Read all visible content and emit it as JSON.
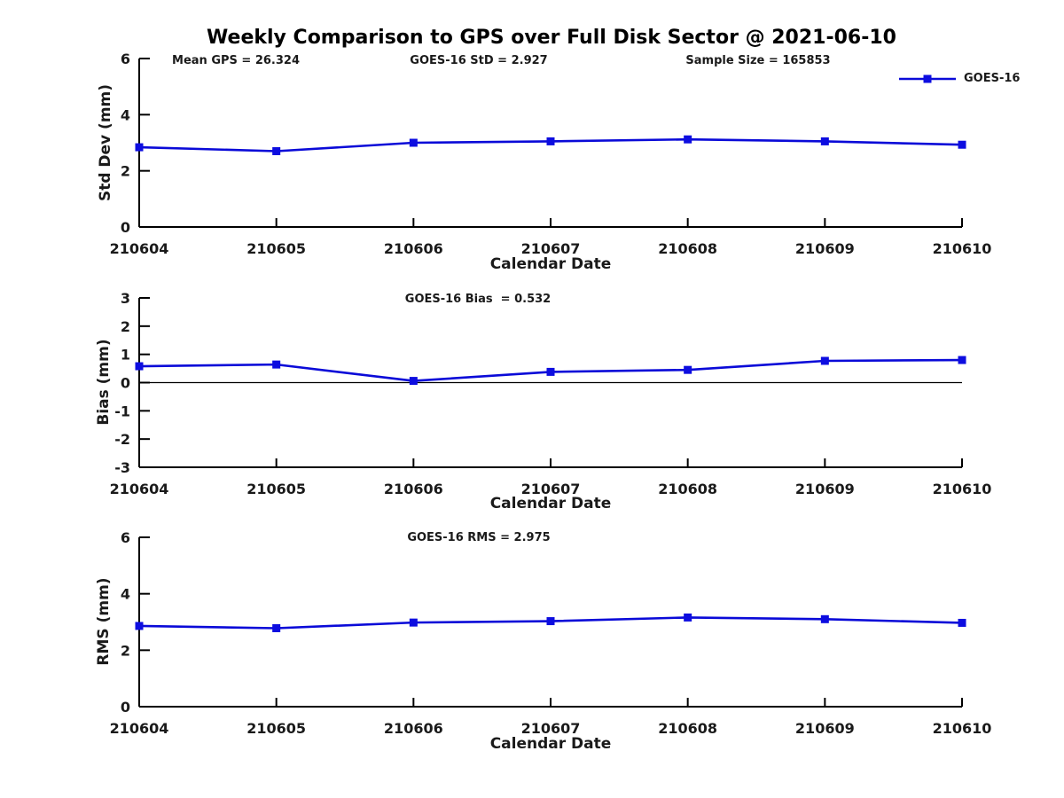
{
  "title": "Weekly Comparison to GPS over Full Disk Sector @ 2021-06-10",
  "header_stats": {
    "mean_gps": "Mean GPS = 26.324",
    "goes16_std": "GOES-16 StD = 2.927",
    "sample_size": "Sample Size = 165853"
  },
  "legend": {
    "series_label": "GOES-16"
  },
  "colors": {
    "line": "#0a0ad8",
    "marker": "#0d0de0",
    "axis": "#000000",
    "text": "#1a1a1a",
    "zero_line": "#000000"
  },
  "chart_data": [
    {
      "type": "line",
      "name": "std-dev",
      "ylabel": "Std Dev (mm)",
      "xlabel": "Calendar Date",
      "annotations": [
        "Mean GPS = 26.324",
        "GOES-16 StD = 2.927",
        "Sample Size = 165853"
      ],
      "categories": [
        "210604",
        "210605",
        "210606",
        "210607",
        "210608",
        "210609",
        "210610"
      ],
      "series": [
        {
          "name": "GOES-16",
          "values": [
            2.84,
            2.7,
            3.0,
            3.05,
            3.12,
            3.05,
            2.93
          ]
        }
      ],
      "ylim": [
        0,
        6
      ],
      "yticks": [
        0,
        2,
        4,
        6
      ],
      "zero_line": false,
      "grid": false,
      "legend_position": "top-right"
    },
    {
      "type": "line",
      "name": "bias",
      "ylabel": "Bias (mm)",
      "xlabel": "Calendar Date",
      "annotations": [
        "GOES-16 Bias  = 0.532"
      ],
      "categories": [
        "210604",
        "210605",
        "210606",
        "210607",
        "210608",
        "210609",
        "210610"
      ],
      "series": [
        {
          "name": "GOES-16",
          "values": [
            0.58,
            0.64,
            0.06,
            0.38,
            0.45,
            0.77,
            0.8
          ]
        }
      ],
      "ylim": [
        -3,
        3
      ],
      "yticks": [
        -3,
        -2,
        -1,
        0,
        1,
        2,
        3
      ],
      "zero_line": true,
      "grid": false,
      "legend_position": "none"
    },
    {
      "type": "line",
      "name": "rms",
      "ylabel": "RMS (mm)",
      "xlabel": "Calendar Date",
      "annotations": [
        "GOES-16 RMS = 2.975"
      ],
      "categories": [
        "210604",
        "210605",
        "210606",
        "210607",
        "210608",
        "210609",
        "210610"
      ],
      "series": [
        {
          "name": "GOES-16",
          "values": [
            2.86,
            2.78,
            2.98,
            3.03,
            3.16,
            3.1,
            2.97
          ]
        }
      ],
      "ylim": [
        0,
        6
      ],
      "yticks": [
        0,
        2,
        4,
        6
      ],
      "zero_line": false,
      "grid": false,
      "legend_position": "none"
    }
  ]
}
